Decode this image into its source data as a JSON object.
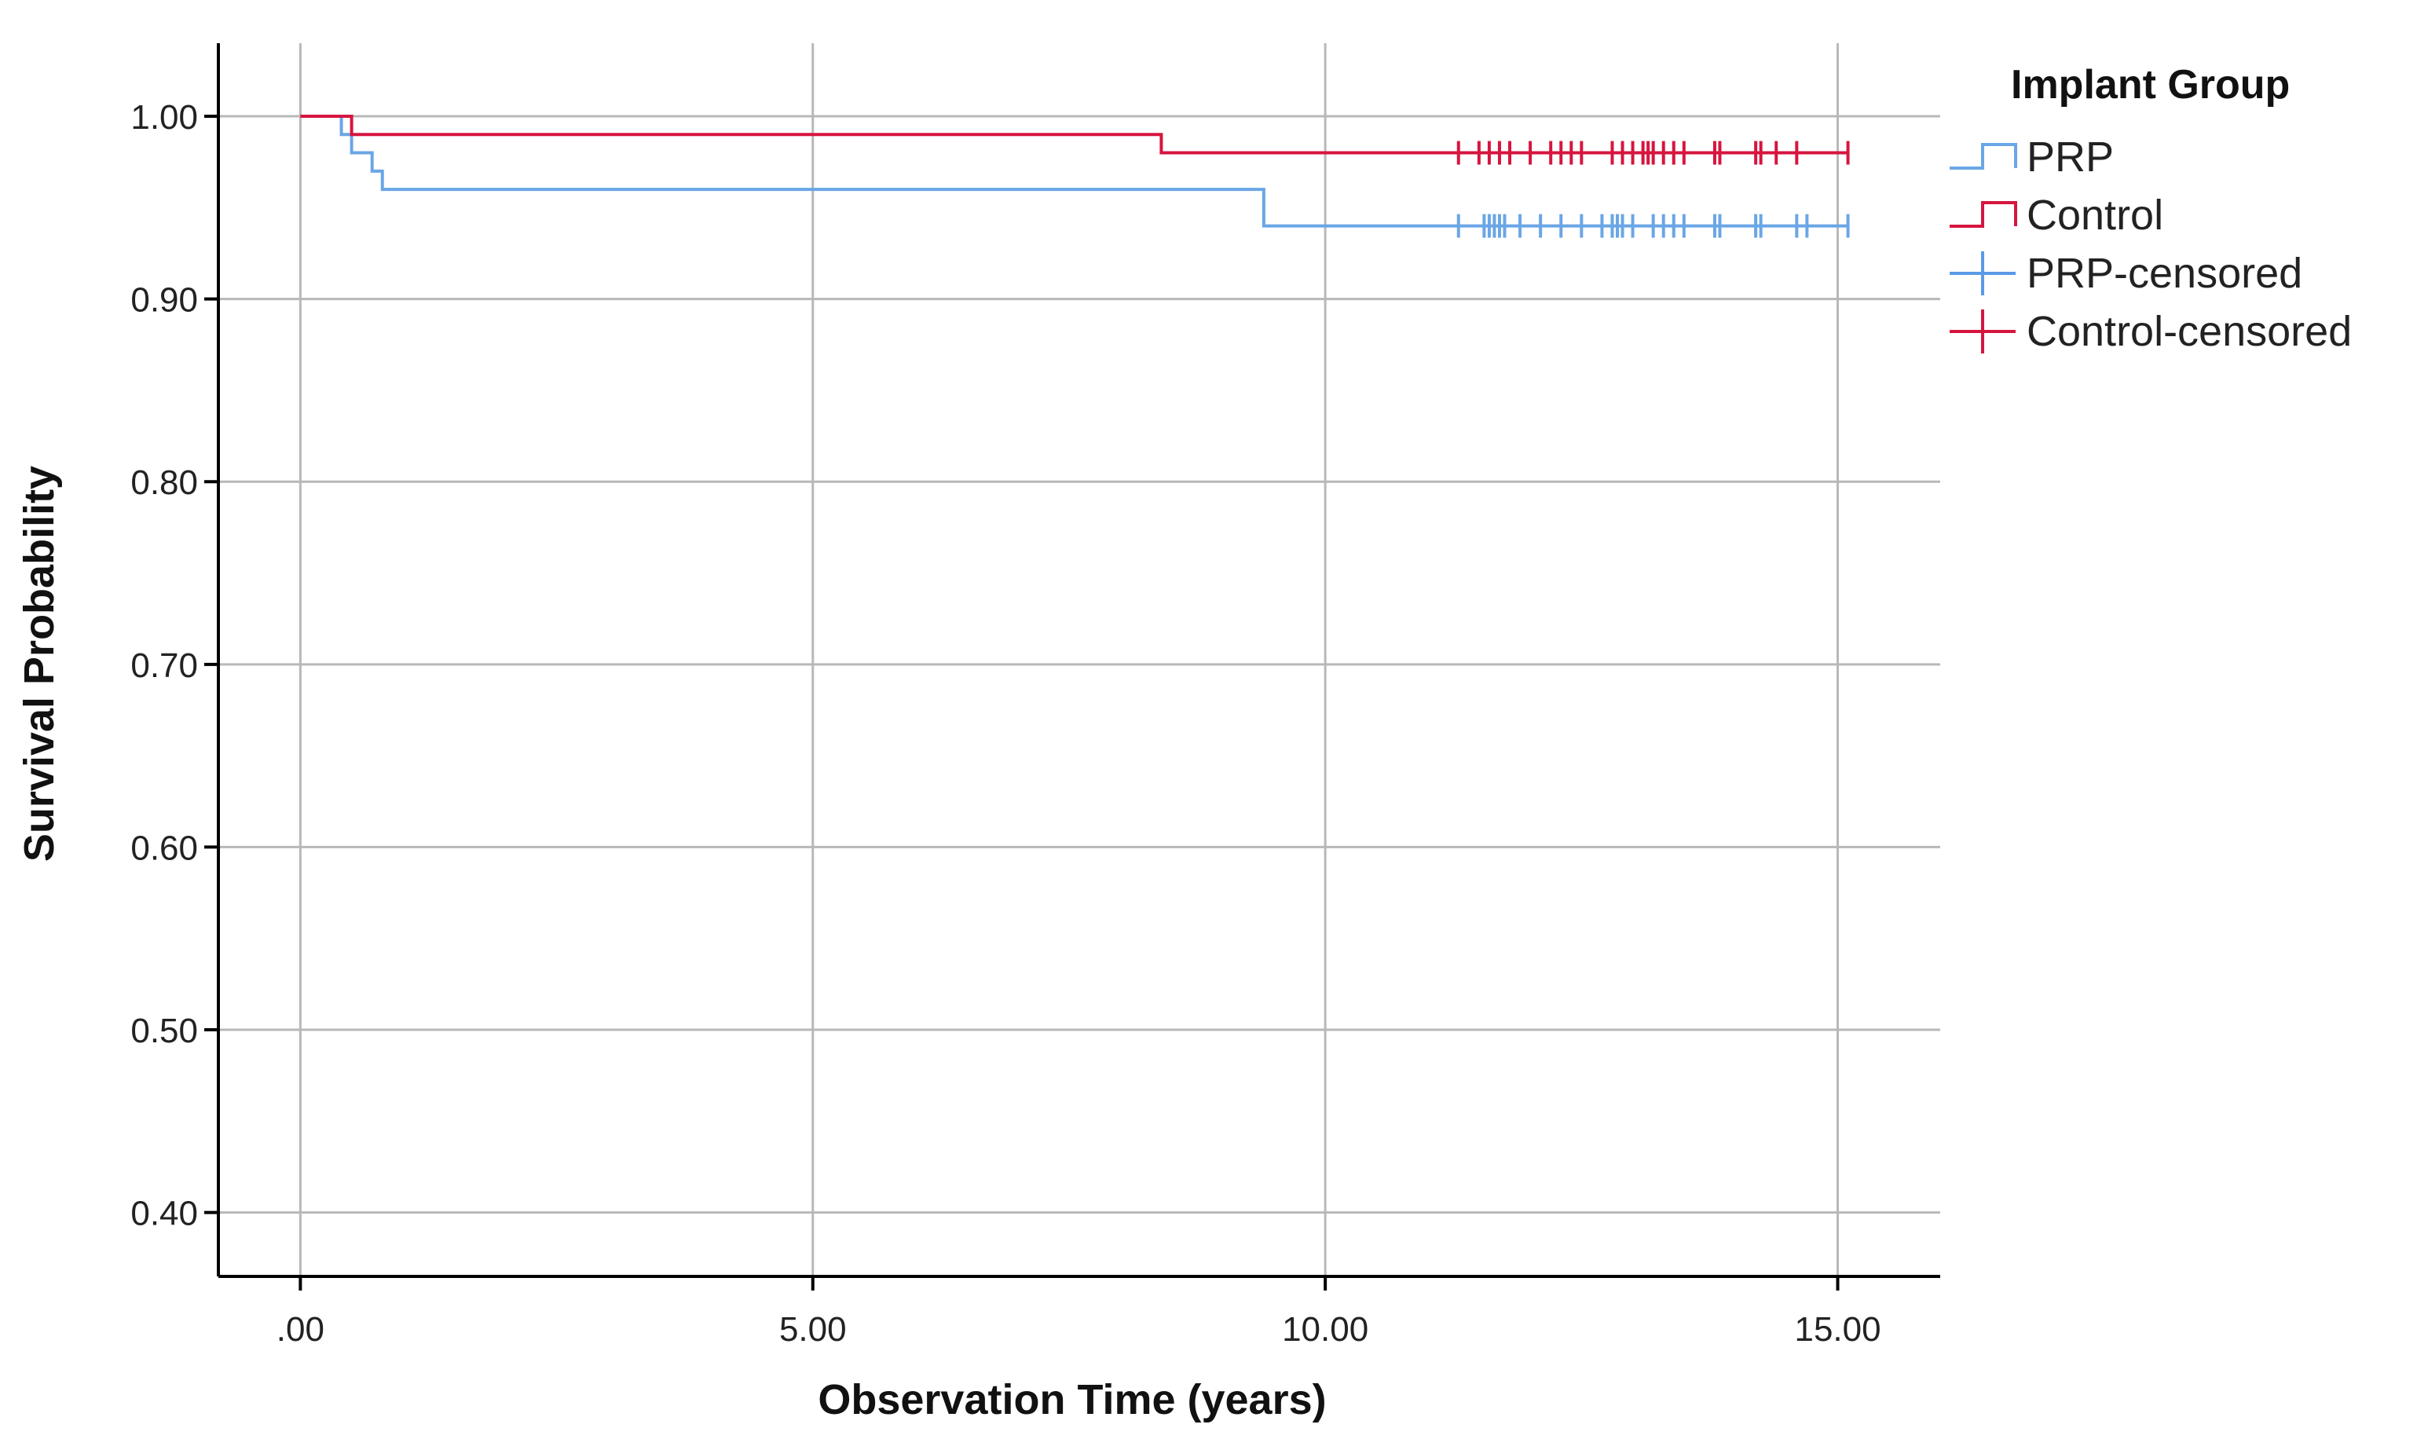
{
  "chart_data": {
    "type": "line",
    "subtype": "kaplan-meier-step",
    "title": "",
    "xlabel": "Observation Time (years)",
    "ylabel": "Survival Probability",
    "xlim": [
      -0.8,
      16.0
    ],
    "ylim": [
      0.365,
      1.04
    ],
    "x_ticks": [
      0,
      5,
      10,
      15
    ],
    "x_tick_labels": [
      ".00",
      "5.00",
      "10.00",
      "15.00"
    ],
    "y_ticks": [
      0.4,
      0.5,
      0.6,
      0.7,
      0.8,
      0.9,
      1.0
    ],
    "y_tick_labels": [
      "0.40",
      "0.50",
      "0.60",
      "0.70",
      "0.80",
      "0.90",
      "1.00"
    ],
    "grid": true,
    "legend": {
      "title": "Implant Group",
      "placement": "top-right, outside plot",
      "entries": [
        {
          "label": "PRP",
          "kind": "step",
          "color": "#6aa6e6"
        },
        {
          "label": "Control",
          "kind": "step",
          "color": "#d6153f"
        },
        {
          "label": "PRP-censored",
          "kind": "censor",
          "color": "#5a9ae6"
        },
        {
          "label": "Control-censored",
          "kind": "censor",
          "color": "#d6153f"
        }
      ]
    },
    "series": [
      {
        "name": "PRP",
        "color": "#6aa6e6",
        "steps": [
          [
            0.0,
            1.0
          ],
          [
            0.4,
            0.99
          ],
          [
            0.5,
            0.98
          ],
          [
            0.7,
            0.97
          ],
          [
            0.8,
            0.96
          ],
          [
            9.4,
            0.94
          ],
          [
            15.1,
            0.94
          ]
        ],
        "censored_x": [
          11.3,
          11.55,
          11.6,
          11.65,
          11.7,
          11.75,
          11.9,
          12.1,
          12.3,
          12.5,
          12.7,
          12.8,
          12.85,
          12.9,
          13.0,
          13.2,
          13.3,
          13.4,
          13.5,
          13.8,
          13.85,
          14.2,
          14.25,
          14.6,
          14.7,
          15.1
        ],
        "censored_y": 0.94
      },
      {
        "name": "Control",
        "color": "#d6153f",
        "steps": [
          [
            0.0,
            1.0
          ],
          [
            0.5,
            0.99
          ],
          [
            8.4,
            0.98
          ],
          [
            15.1,
            0.98
          ]
        ],
        "censored_x": [
          11.3,
          11.5,
          11.6,
          11.7,
          11.8,
          12.0,
          12.2,
          12.3,
          12.4,
          12.5,
          12.8,
          12.9,
          13.0,
          13.1,
          13.15,
          13.2,
          13.3,
          13.4,
          13.5,
          13.8,
          13.85,
          14.2,
          14.25,
          14.4,
          14.6,
          15.1
        ],
        "censored_y": 0.98
      }
    ]
  }
}
